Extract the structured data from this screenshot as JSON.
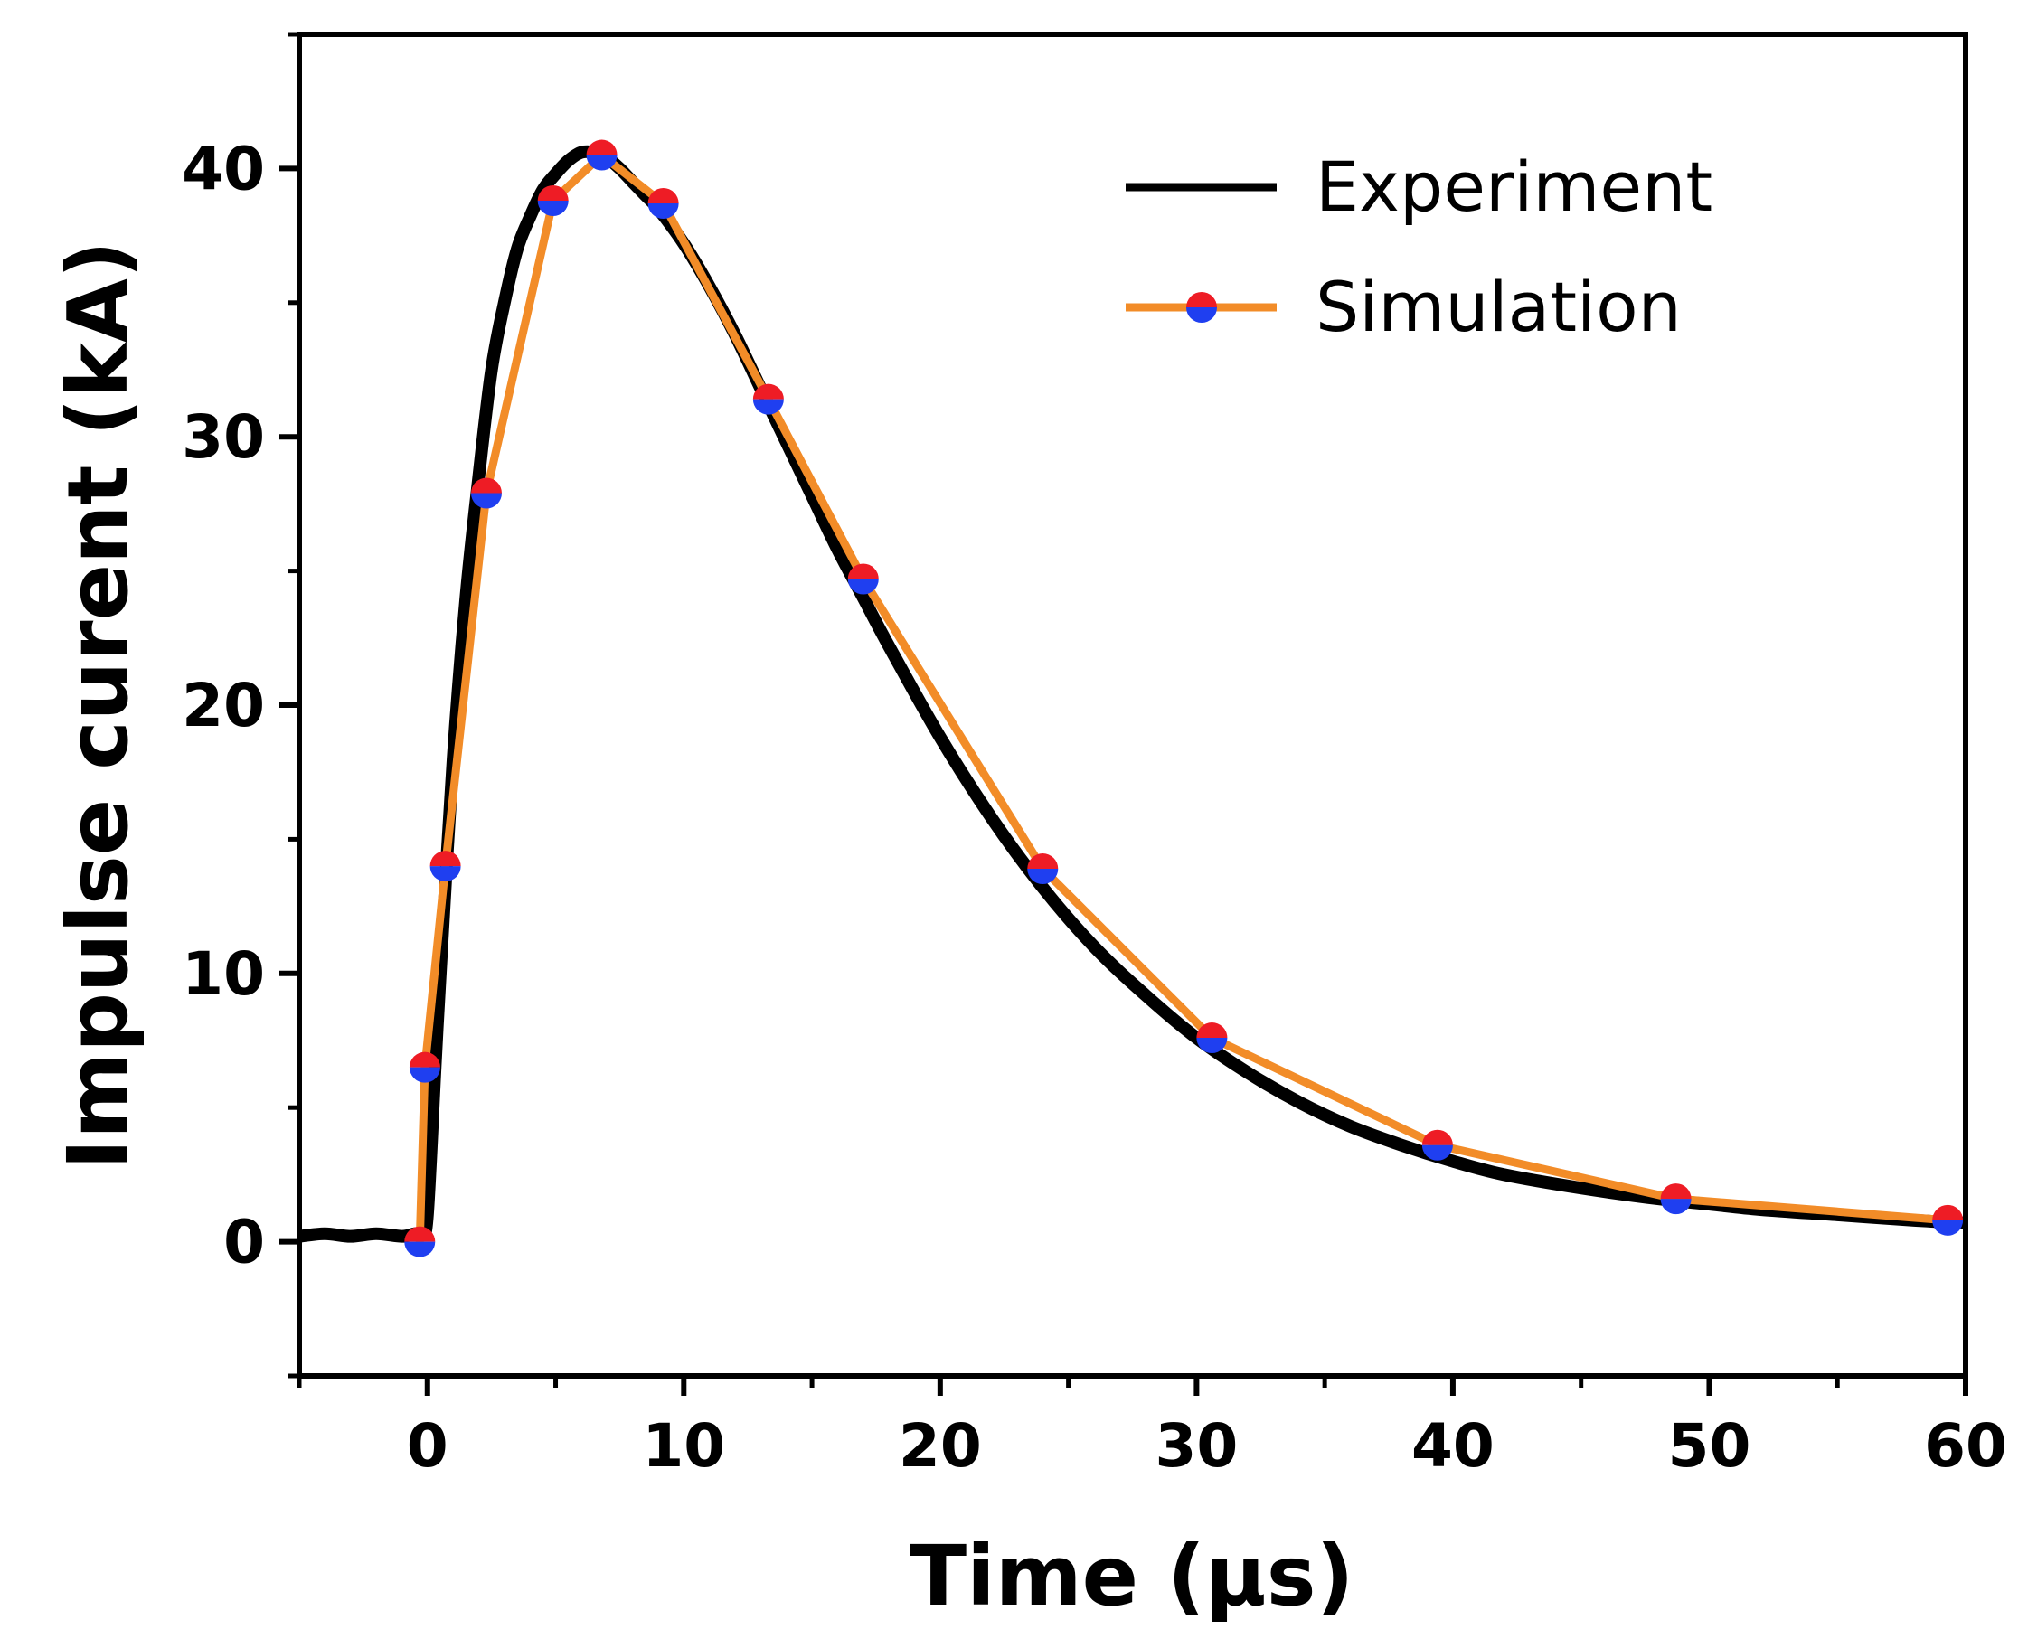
{
  "chart_data": {
    "type": "line",
    "title": "",
    "xlabel": "Time (μs)",
    "ylabel": "Impulse curent (kA)",
    "xlim": [
      -5,
      60
    ],
    "ylim": [
      -5,
      45
    ],
    "x_ticks": [
      0,
      10,
      20,
      30,
      40,
      50,
      60
    ],
    "x_tick_labels": [
      "0",
      "10",
      "20",
      "30",
      "40",
      "50",
      "60"
    ],
    "y_ticks": [
      0,
      10,
      20,
      30,
      40
    ],
    "y_tick_labels": [
      "0",
      "10",
      "20",
      "30",
      "40"
    ],
    "x_minor_step": 5,
    "y_minor_step": 5,
    "grid": false,
    "legend_position": "top-right",
    "series": [
      {
        "name": "Experiment",
        "color": "#000000",
        "marker": "none",
        "x": [
          -5,
          -4,
          -3,
          -2,
          -1,
          -0.5,
          -0.2,
          0,
          0.3,
          0.5,
          1,
          1.5,
          2,
          2.5,
          3,
          3.5,
          4,
          4.5,
          5,
          5.5,
          6,
          6.5,
          7,
          7.5,
          8,
          8.5,
          9,
          10,
          11,
          12,
          13,
          14,
          15,
          16,
          17,
          18,
          20,
          22,
          24,
          26,
          28,
          30,
          32,
          34,
          36,
          38,
          40,
          42,
          45,
          48,
          50,
          52,
          55,
          58,
          60
        ],
        "y": [
          0.2,
          0.3,
          0.2,
          0.3,
          0.2,
          0.3,
          0.3,
          1,
          6.5,
          10,
          18,
          24,
          28.5,
          32.5,
          35,
          37,
          38.2,
          39.2,
          39.8,
          40.3,
          40.6,
          40.6,
          40.4,
          40,
          39.5,
          39,
          38.5,
          37.2,
          35.6,
          33.8,
          31.8,
          29.8,
          27.8,
          25.8,
          24,
          22.2,
          18.8,
          15.8,
          13.2,
          11,
          9.2,
          7.6,
          6.3,
          5.2,
          4.3,
          3.6,
          3.0,
          2.5,
          2.0,
          1.6,
          1.4,
          1.2,
          1.0,
          0.8,
          0.7
        ]
      },
      {
        "name": "Simulation",
        "color": "#f28c28",
        "marker": "circle",
        "marker_colors": [
          "#ee1c25",
          "#1f3ff0"
        ],
        "x": [
          -0.3,
          -0.1,
          0.7,
          2.3,
          4.9,
          6.8,
          9.2,
          13.3,
          17,
          24,
          30.6,
          39.4,
          48.7,
          59.3
        ],
        "y": [
          0,
          6.5,
          14,
          27.9,
          38.8,
          40.5,
          38.7,
          31.4,
          24.7,
          13.9,
          7.6,
          3.6,
          1.6,
          0.8
        ]
      }
    ]
  }
}
